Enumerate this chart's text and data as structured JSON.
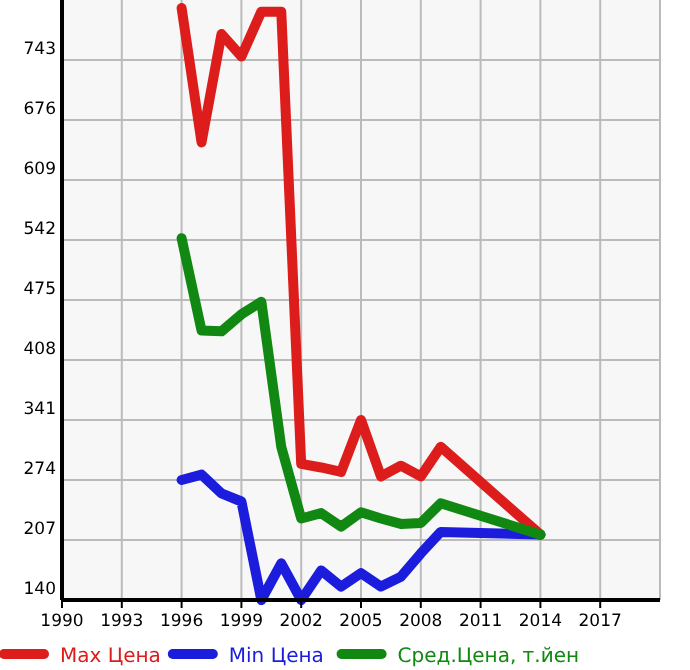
{
  "chart_data": {
    "type": "line",
    "x": [
      1996,
      1997,
      1998,
      1999,
      2000,
      2001,
      2002,
      2003,
      2004,
      2005,
      2006,
      2007,
      2008,
      2009,
      2014
    ],
    "series": [
      {
        "name": "Max Цена",
        "color": "#dd1c1c",
        "values": [
          801,
          651,
          772,
          747,
          797,
          797,
          292,
          288,
          283,
          341,
          278,
          290,
          278,
          311,
          213
        ]
      },
      {
        "name": "Min Цена",
        "color": "#1c1cdd",
        "values": [
          274,
          280,
          259,
          250,
          140,
          181,
          140,
          173,
          155,
          170,
          155,
          166,
          192,
          216,
          213
        ]
      },
      {
        "name": "Сред.Цена, т.йен",
        "color": "#118811",
        "values": [
          544,
          441,
          440,
          459,
          473,
          311,
          231,
          237,
          222,
          238,
          231,
          225,
          226,
          248,
          213
        ]
      }
    ],
    "xlim": [
      1990,
      2020
    ],
    "xticks": [
      1990,
      1993,
      1996,
      1999,
      2002,
      2005,
      2008,
      2011,
      2014,
      2017
    ],
    "ylim": [
      140,
      810
    ],
    "yticks": [
      140,
      207,
      274,
      341,
      408,
      475,
      542,
      609,
      676,
      743
    ],
    "grid": true,
    "legend": "bottom",
    "marker": "none",
    "line_style": "solid"
  }
}
